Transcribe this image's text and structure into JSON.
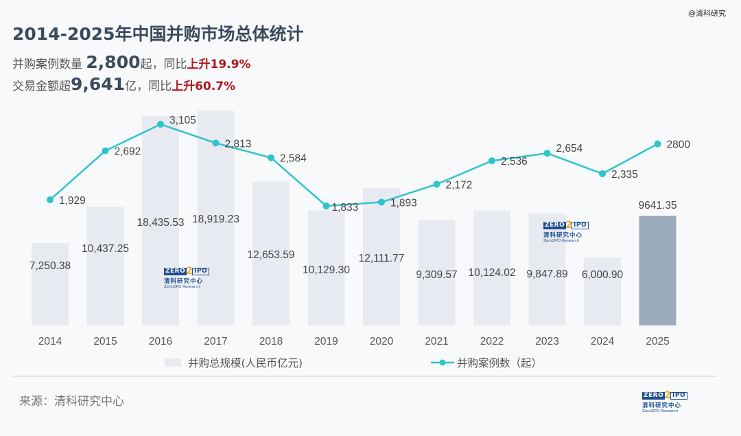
{
  "watermark": "@清科研究",
  "header": {
    "title": "2014-2025年中国并购市场总体统计",
    "line1_prefix": "并购案例数量 ",
    "line1_value": "2,800",
    "line1_unit": "起，同比",
    "line1_change": "上升19.9%",
    "line2_prefix": "交易金额超",
    "line2_value": "9,641",
    "line2_unit": "亿，同比",
    "line2_change": "上升60.7%"
  },
  "chart_data": {
    "type": "bar+line",
    "title": "2014-2025年中国并购市场总体统计",
    "categories": [
      "2014",
      "2015",
      "2016",
      "2017",
      "2018",
      "2019",
      "2020",
      "2021",
      "2022",
      "2023",
      "2024",
      "2025"
    ],
    "series": [
      {
        "name": "并购总规模(人民币亿元)",
        "type": "bar",
        "values": [
          7250.38,
          10437.25,
          18435.53,
          18919.23,
          12653.59,
          10129.3,
          12111.77,
          9309.57,
          10124.02,
          9847.89,
          6000.9,
          9641.35
        ],
        "labels": [
          "7,250.38",
          "10,437.25",
          "18,435.53",
          "18,919.23",
          "12,653.59",
          "10,129.30",
          "12,111.77",
          "9,309.57",
          "10,124.02",
          "9,847.89",
          "6,000.90",
          "9641.35"
        ],
        "color": "#e7eaf1",
        "highlight_color": "#9aabbb"
      },
      {
        "name": "并购案例数（起）",
        "type": "line",
        "values": [
          1929,
          2692,
          3105,
          2813,
          2584,
          1833,
          1893,
          2172,
          2536,
          2654,
          2335,
          2800
        ],
        "labels": [
          "1,929",
          "2,692",
          "3,105",
          "2,813",
          "2,584",
          "1,833",
          "1,893",
          "2,172",
          "2,536",
          "2,654",
          "2,335",
          "2800"
        ],
        "color": "#2ec4c8"
      }
    ],
    "legend": [
      "并购总规模(人民币亿元)",
      "并购案例数（起）"
    ],
    "legend_position": "bottom",
    "grid": false
  },
  "legend": {
    "bar_label": "并购总规模(人民币亿元)",
    "line_label": "并购案例数（起）"
  },
  "footer": {
    "source": "来源：清科研究中心"
  },
  "logo": {
    "zero": "ZERO",
    "two": "2",
    "ipo": "IPO",
    "cn": "清科研究中心",
    "en": "Zero2IPO Research"
  }
}
